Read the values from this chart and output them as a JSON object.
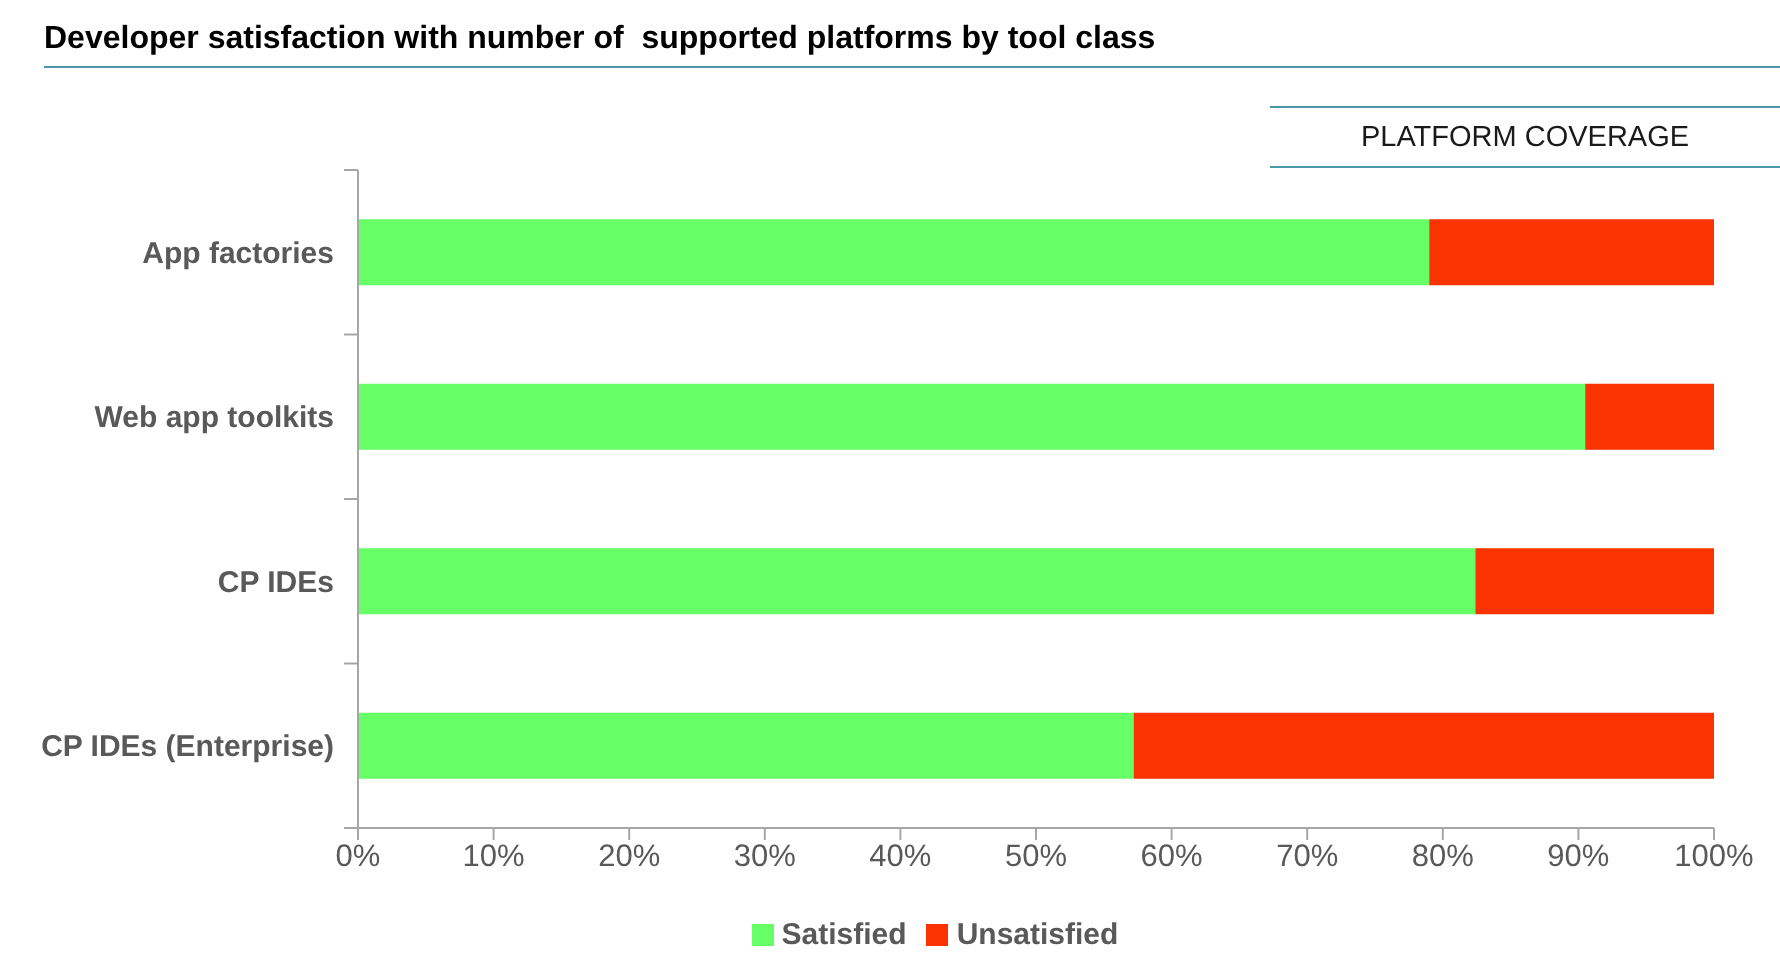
{
  "chart_data": {
    "type": "bar",
    "orientation": "horizontal",
    "stacked": true,
    "title": "Developer satisfaction with number of  supported platforms by tool class",
    "annotations": [
      "PLATFORM COVERAGE"
    ],
    "categories": [
      "App factories",
      "Web app toolkits",
      "CP IDEs",
      "CP IDEs (Enterprise)"
    ],
    "series": [
      {
        "name": "Satisfied",
        "color": "#66ff66",
        "values": [
          79,
          90.5,
          82.4,
          57.2
        ]
      },
      {
        "name": "Unsatisfied",
        "color": "#fa3300",
        "values": [
          21,
          9.5,
          17.6,
          42.8
        ]
      }
    ],
    "xlim": [
      0,
      100
    ],
    "xticks": [
      {
        "value": 0,
        "label": "0%"
      },
      {
        "value": 10,
        "label": "10%"
      },
      {
        "value": 20,
        "label": "20%"
      },
      {
        "value": 30,
        "label": "30%"
      },
      {
        "value": 40,
        "label": "40%"
      },
      {
        "value": 50,
        "label": "50%"
      },
      {
        "value": 60,
        "label": "60%"
      },
      {
        "value": 70,
        "label": "70%"
      },
      {
        "value": 80,
        "label": "80%"
      },
      {
        "value": 90,
        "label": "90%"
      },
      {
        "value": 100,
        "label": "100%"
      }
    ],
    "grid": false,
    "legend": "bottom"
  }
}
